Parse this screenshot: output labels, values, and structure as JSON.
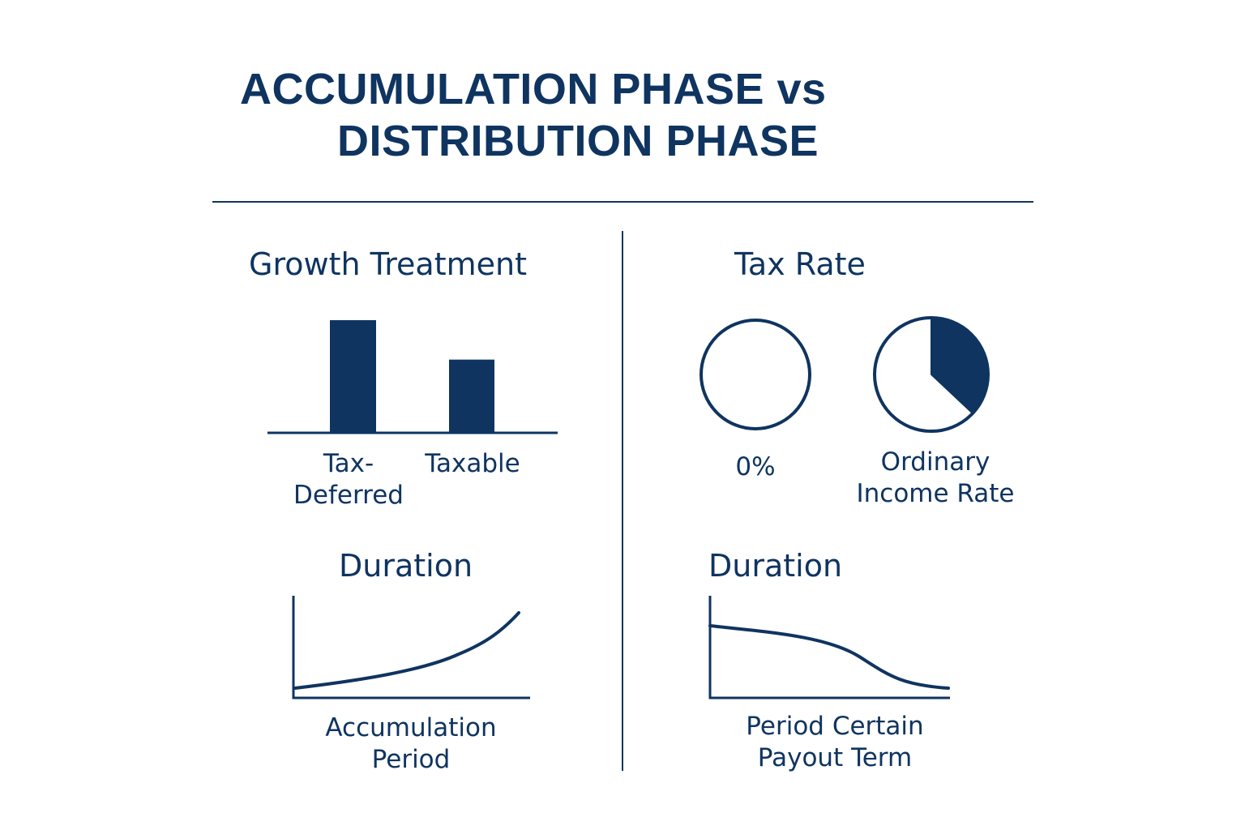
{
  "title": {
    "line1": "ACCUMULATION PHASE vs",
    "line2": "DISTRIBUTION PHASE"
  },
  "growth_treatment": {
    "heading": "Growth Treatment",
    "bars": [
      {
        "label_line1": "Tax-",
        "label_line2": "Deferred",
        "value": 1.0
      },
      {
        "label_line1": "Taxable",
        "label_line2": "",
        "value": 0.65
      }
    ]
  },
  "tax_rate": {
    "heading": "Tax Rate",
    "pies": [
      {
        "label_line1": "0%",
        "label_line2": "",
        "fraction": 0.0
      },
      {
        "label_line1": "Ordinary",
        "label_line2": "Income Rate",
        "fraction": 0.37
      }
    ]
  },
  "duration_accumulation": {
    "heading": "Duration",
    "label_line1": "Accumulation",
    "label_line2": "Period",
    "trend": "increasing"
  },
  "duration_distribution": {
    "heading": "Duration",
    "label_line1": "Period Certain",
    "label_line2": "Payout Term",
    "trend": "decreasing"
  },
  "colors": {
    "primary": "#0f3460",
    "background": "#ffffff"
  }
}
